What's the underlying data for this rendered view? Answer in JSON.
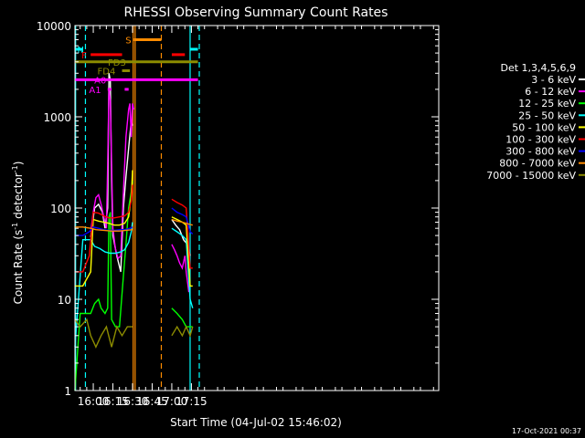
{
  "chart_data": {
    "type": "line",
    "title": "RHESSI Observing Summary Count Rates",
    "xlabel": "Start Time (04-Jul-02 15:46:02)",
    "ylabel_main": "Count Rate (s",
    "ylabel_sup1": "-1",
    "ylabel_mid": " detector",
    "ylabel_sup2": "-1",
    "ylabel_end": ")",
    "footer": "17-Oct-2021 00:37",
    "x_range_min": [
      946,
      1224
    ],
    "y_range": [
      1,
      10000
    ],
    "y_scale": "log",
    "x_ticks": [
      {
        "t": 960,
        "label": "16:00"
      },
      {
        "t": 975,
        "label": "16:15"
      },
      {
        "t": 990,
        "label": "16:30"
      },
      {
        "t": 1005,
        "label": "16:45"
      },
      {
        "t": 1020,
        "label": "17:00"
      },
      {
        "t": 1035,
        "label": "17:15"
      }
    ],
    "y_ticks": [
      {
        "v": 1,
        "label": "1"
      },
      {
        "v": 10,
        "label": "10"
      },
      {
        "v": 100,
        "label": "100"
      },
      {
        "v": 1000,
        "label": "1000"
      },
      {
        "v": 10000,
        "label": "10000"
      }
    ],
    "legend_title": "Det 1,3,4,5,6,9",
    "series": [
      {
        "name": "3 - 6 keV",
        "color": "#ffffff",
        "points": [
          [
            958,
            48
          ],
          [
            961,
            100
          ],
          [
            964,
            110
          ],
          [
            967,
            90
          ],
          [
            969,
            60
          ],
          [
            971,
            100
          ],
          [
            972,
            3000
          ],
          [
            973,
            2500
          ],
          [
            974,
            200
          ],
          [
            975,
            50
          ],
          [
            978,
            30
          ],
          [
            981,
            20
          ],
          [
            983,
            100
          ],
          [
            985,
            220
          ],
          [
            987,
            450
          ],
          [
            989,
            900
          ],
          [
            990,
            800
          ]
        ],
        "points2": [
          [
            1020,
            75
          ],
          [
            1023,
            65
          ],
          [
            1026,
            58
          ],
          [
            1029,
            45
          ],
          [
            1032,
            40
          ],
          [
            1034,
            30
          ]
        ]
      },
      {
        "name": "6 - 12 keV",
        "color": "#ff00ff",
        "points": [
          [
            958,
            55
          ],
          [
            960,
            90
          ],
          [
            962,
            130
          ],
          [
            964,
            140
          ],
          [
            966,
            110
          ],
          [
            968,
            80
          ],
          [
            970,
            60
          ],
          [
            971,
            300
          ],
          [
            972,
            2000
          ],
          [
            973,
            1500
          ],
          [
            974,
            300
          ],
          [
            975,
            60
          ],
          [
            977,
            35
          ],
          [
            979,
            28
          ],
          [
            981,
            30
          ],
          [
            983,
            150
          ],
          [
            985,
            600
          ],
          [
            987,
            1200
          ],
          [
            988,
            1400
          ],
          [
            989,
            600
          ],
          [
            990,
            1400
          ],
          [
            991,
            1200
          ]
        ],
        "points2": [
          [
            1020,
            40
          ],
          [
            1022,
            35
          ],
          [
            1024,
            30
          ],
          [
            1026,
            25
          ],
          [
            1028,
            22
          ],
          [
            1030,
            30
          ],
          [
            1031,
            20
          ],
          [
            1033,
            12
          ]
        ]
      },
      {
        "name": "12 - 25 keV",
        "color": "#00ff00",
        "points": [
          [
            946,
            1
          ],
          [
            950,
            7
          ],
          [
            956,
            7
          ],
          [
            958,
            7
          ],
          [
            961,
            9
          ],
          [
            964,
            10
          ],
          [
            966,
            8
          ],
          [
            969,
            7
          ],
          [
            971,
            8
          ],
          [
            972,
            80
          ],
          [
            973,
            90
          ],
          [
            974,
            6
          ],
          [
            977,
            5
          ],
          [
            980,
            5
          ],
          [
            983,
            18
          ],
          [
            985,
            40
          ],
          [
            987,
            100
          ],
          [
            989,
            150
          ],
          [
            990,
            200
          ]
        ],
        "points2": [
          [
            1020,
            8
          ],
          [
            1024,
            7
          ],
          [
            1028,
            6
          ],
          [
            1031,
            5
          ],
          [
            1034,
            5
          ],
          [
            1036,
            5
          ]
        ]
      },
      {
        "name": "25 - 50 keV",
        "color": "#00ffff",
        "points": [
          [
            946,
            3
          ],
          [
            952,
            45
          ],
          [
            958,
            45
          ],
          [
            961,
            38
          ],
          [
            965,
            36
          ],
          [
            969,
            33
          ],
          [
            973,
            32
          ],
          [
            977,
            32
          ],
          [
            981,
            33
          ],
          [
            984,
            35
          ],
          [
            987,
            42
          ],
          [
            989,
            55
          ],
          [
            990,
            70
          ]
        ],
        "points2": [
          [
            1020,
            60
          ],
          [
            1024,
            55
          ],
          [
            1028,
            50
          ],
          [
            1031,
            45
          ],
          [
            1034,
            10
          ],
          [
            1036,
            8
          ]
        ]
      },
      {
        "name": "50 - 100 keV",
        "color": "#ffff00",
        "points": [
          [
            946,
            14
          ],
          [
            952,
            14
          ],
          [
            958,
            20
          ],
          [
            960,
            75
          ],
          [
            964,
            72
          ],
          [
            968,
            70
          ],
          [
            972,
            68
          ],
          [
            976,
            65
          ],
          [
            980,
            65
          ],
          [
            984,
            68
          ],
          [
            987,
            80
          ],
          [
            989,
            130
          ],
          [
            990,
            260
          ]
        ],
        "points2": [
          [
            1020,
            80
          ],
          [
            1024,
            75
          ],
          [
            1028,
            70
          ],
          [
            1031,
            65
          ],
          [
            1034,
            14
          ],
          [
            1036,
            14
          ]
        ]
      },
      {
        "name": "100 - 300 keV",
        "color": "#ff0000",
        "points": [
          [
            946,
            20
          ],
          [
            952,
            20
          ],
          [
            957,
            30
          ],
          [
            960,
            90
          ],
          [
            964,
            88
          ],
          [
            968,
            82
          ],
          [
            972,
            78
          ],
          [
            976,
            78
          ],
          [
            980,
            80
          ],
          [
            984,
            82
          ],
          [
            987,
            90
          ],
          [
            989,
            120
          ],
          [
            990,
            180
          ]
        ],
        "points2": [
          [
            1020,
            125
          ],
          [
            1024,
            115
          ],
          [
            1028,
            108
          ],
          [
            1031,
            100
          ],
          [
            1034,
            22
          ],
          [
            1036,
            22
          ]
        ]
      },
      {
        "name": "300 - 800 keV",
        "color": "#0000ff",
        "points": [
          [
            946,
            50
          ],
          [
            952,
            50
          ],
          [
            957,
            55
          ],
          [
            960,
            62
          ],
          [
            964,
            60
          ],
          [
            968,
            58
          ],
          [
            972,
            57
          ],
          [
            976,
            57
          ],
          [
            980,
            58
          ],
          [
            984,
            58
          ],
          [
            988,
            60
          ],
          [
            990,
            62
          ]
        ],
        "points2": [
          [
            1020,
            100
          ],
          [
            1024,
            90
          ],
          [
            1028,
            85
          ],
          [
            1031,
            80
          ],
          [
            1034,
            55
          ],
          [
            1036,
            52
          ]
        ]
      },
      {
        "name": "800 - 7000 keV",
        "color": "#ff8c00",
        "points": [
          [
            946,
            62
          ],
          [
            952,
            62
          ],
          [
            958,
            60
          ],
          [
            962,
            58
          ],
          [
            968,
            57
          ],
          [
            974,
            56
          ],
          [
            980,
            56
          ],
          [
            985,
            57
          ],
          [
            990,
            58
          ]
        ],
        "points2": [
          [
            1020,
            75
          ],
          [
            1024,
            72
          ],
          [
            1028,
            70
          ],
          [
            1031,
            68
          ],
          [
            1034,
            66
          ],
          [
            1036,
            65
          ]
        ]
      },
      {
        "name": "7000 - 15000 keV",
        "color": "#8c8c00",
        "points": [
          [
            946,
            6
          ],
          [
            950,
            5
          ],
          [
            955,
            6
          ],
          [
            958,
            4
          ],
          [
            962,
            3
          ],
          [
            966,
            4
          ],
          [
            970,
            5
          ],
          [
            974,
            3
          ],
          [
            978,
            5
          ],
          [
            982,
            4
          ],
          [
            986,
            5
          ],
          [
            990,
            5
          ]
        ],
        "points2": [
          [
            1020,
            4
          ],
          [
            1024,
            5
          ],
          [
            1028,
            4
          ],
          [
            1031,
            5
          ],
          [
            1034,
            4
          ],
          [
            1036,
            5
          ]
        ]
      }
    ],
    "flags": [
      {
        "label": "N",
        "color": "#00ffff",
        "v": 5500,
        "segments": [
          [
            946,
            952
          ],
          [
            1034,
            1040
          ]
        ],
        "label_t": 953
      },
      {
        "label": "S",
        "color": "#ff8c00",
        "v": 7000,
        "segments": [
          [
            991,
            1012
          ]
        ],
        "label_t": 989
      },
      {
        "label": "F",
        "color": "#ff0000",
        "v": 4800,
        "segments": [
          [
            958,
            982
          ],
          [
            1020,
            1030
          ]
        ],
        "label_t": 955
      },
      {
        "label": "FD3",
        "color": "#8c8c00",
        "v": 4000,
        "segments": [
          [
            946,
            1040
          ]
        ],
        "label_t": 985
      },
      {
        "label": "FD4",
        "color": "#8c8c00",
        "v": 3200,
        "segments": [
          [
            982,
            988
          ]
        ],
        "label_t": 977
      },
      {
        "label": "A0",
        "color": "#ff00ff",
        "v": 2550,
        "segments": [
          [
            946,
            1040
          ]
        ],
        "label_t": 970
      },
      {
        "label": "A1",
        "color": "#ff00ff",
        "v": 2000,
        "segments": [
          [
            971,
            974
          ],
          [
            984,
            987
          ]
        ],
        "label_t": 966
      }
    ],
    "vlines": [
      {
        "t": 954,
        "color": "#00ffff",
        "dash": true
      },
      {
        "t": 946.5,
        "color": "#00ffff",
        "dash": false
      },
      {
        "t": 990.5,
        "color": "#ff8c00",
        "dash": false
      },
      {
        "t": 992,
        "color": "#ff8c00",
        "dash": false
      },
      {
        "t": 1012,
        "color": "#ff8c00",
        "dash": true
      },
      {
        "t": 1034,
        "color": "#00ffff",
        "dash": false
      },
      {
        "t": 1041,
        "color": "#00ffff",
        "dash": true
      }
    ]
  }
}
